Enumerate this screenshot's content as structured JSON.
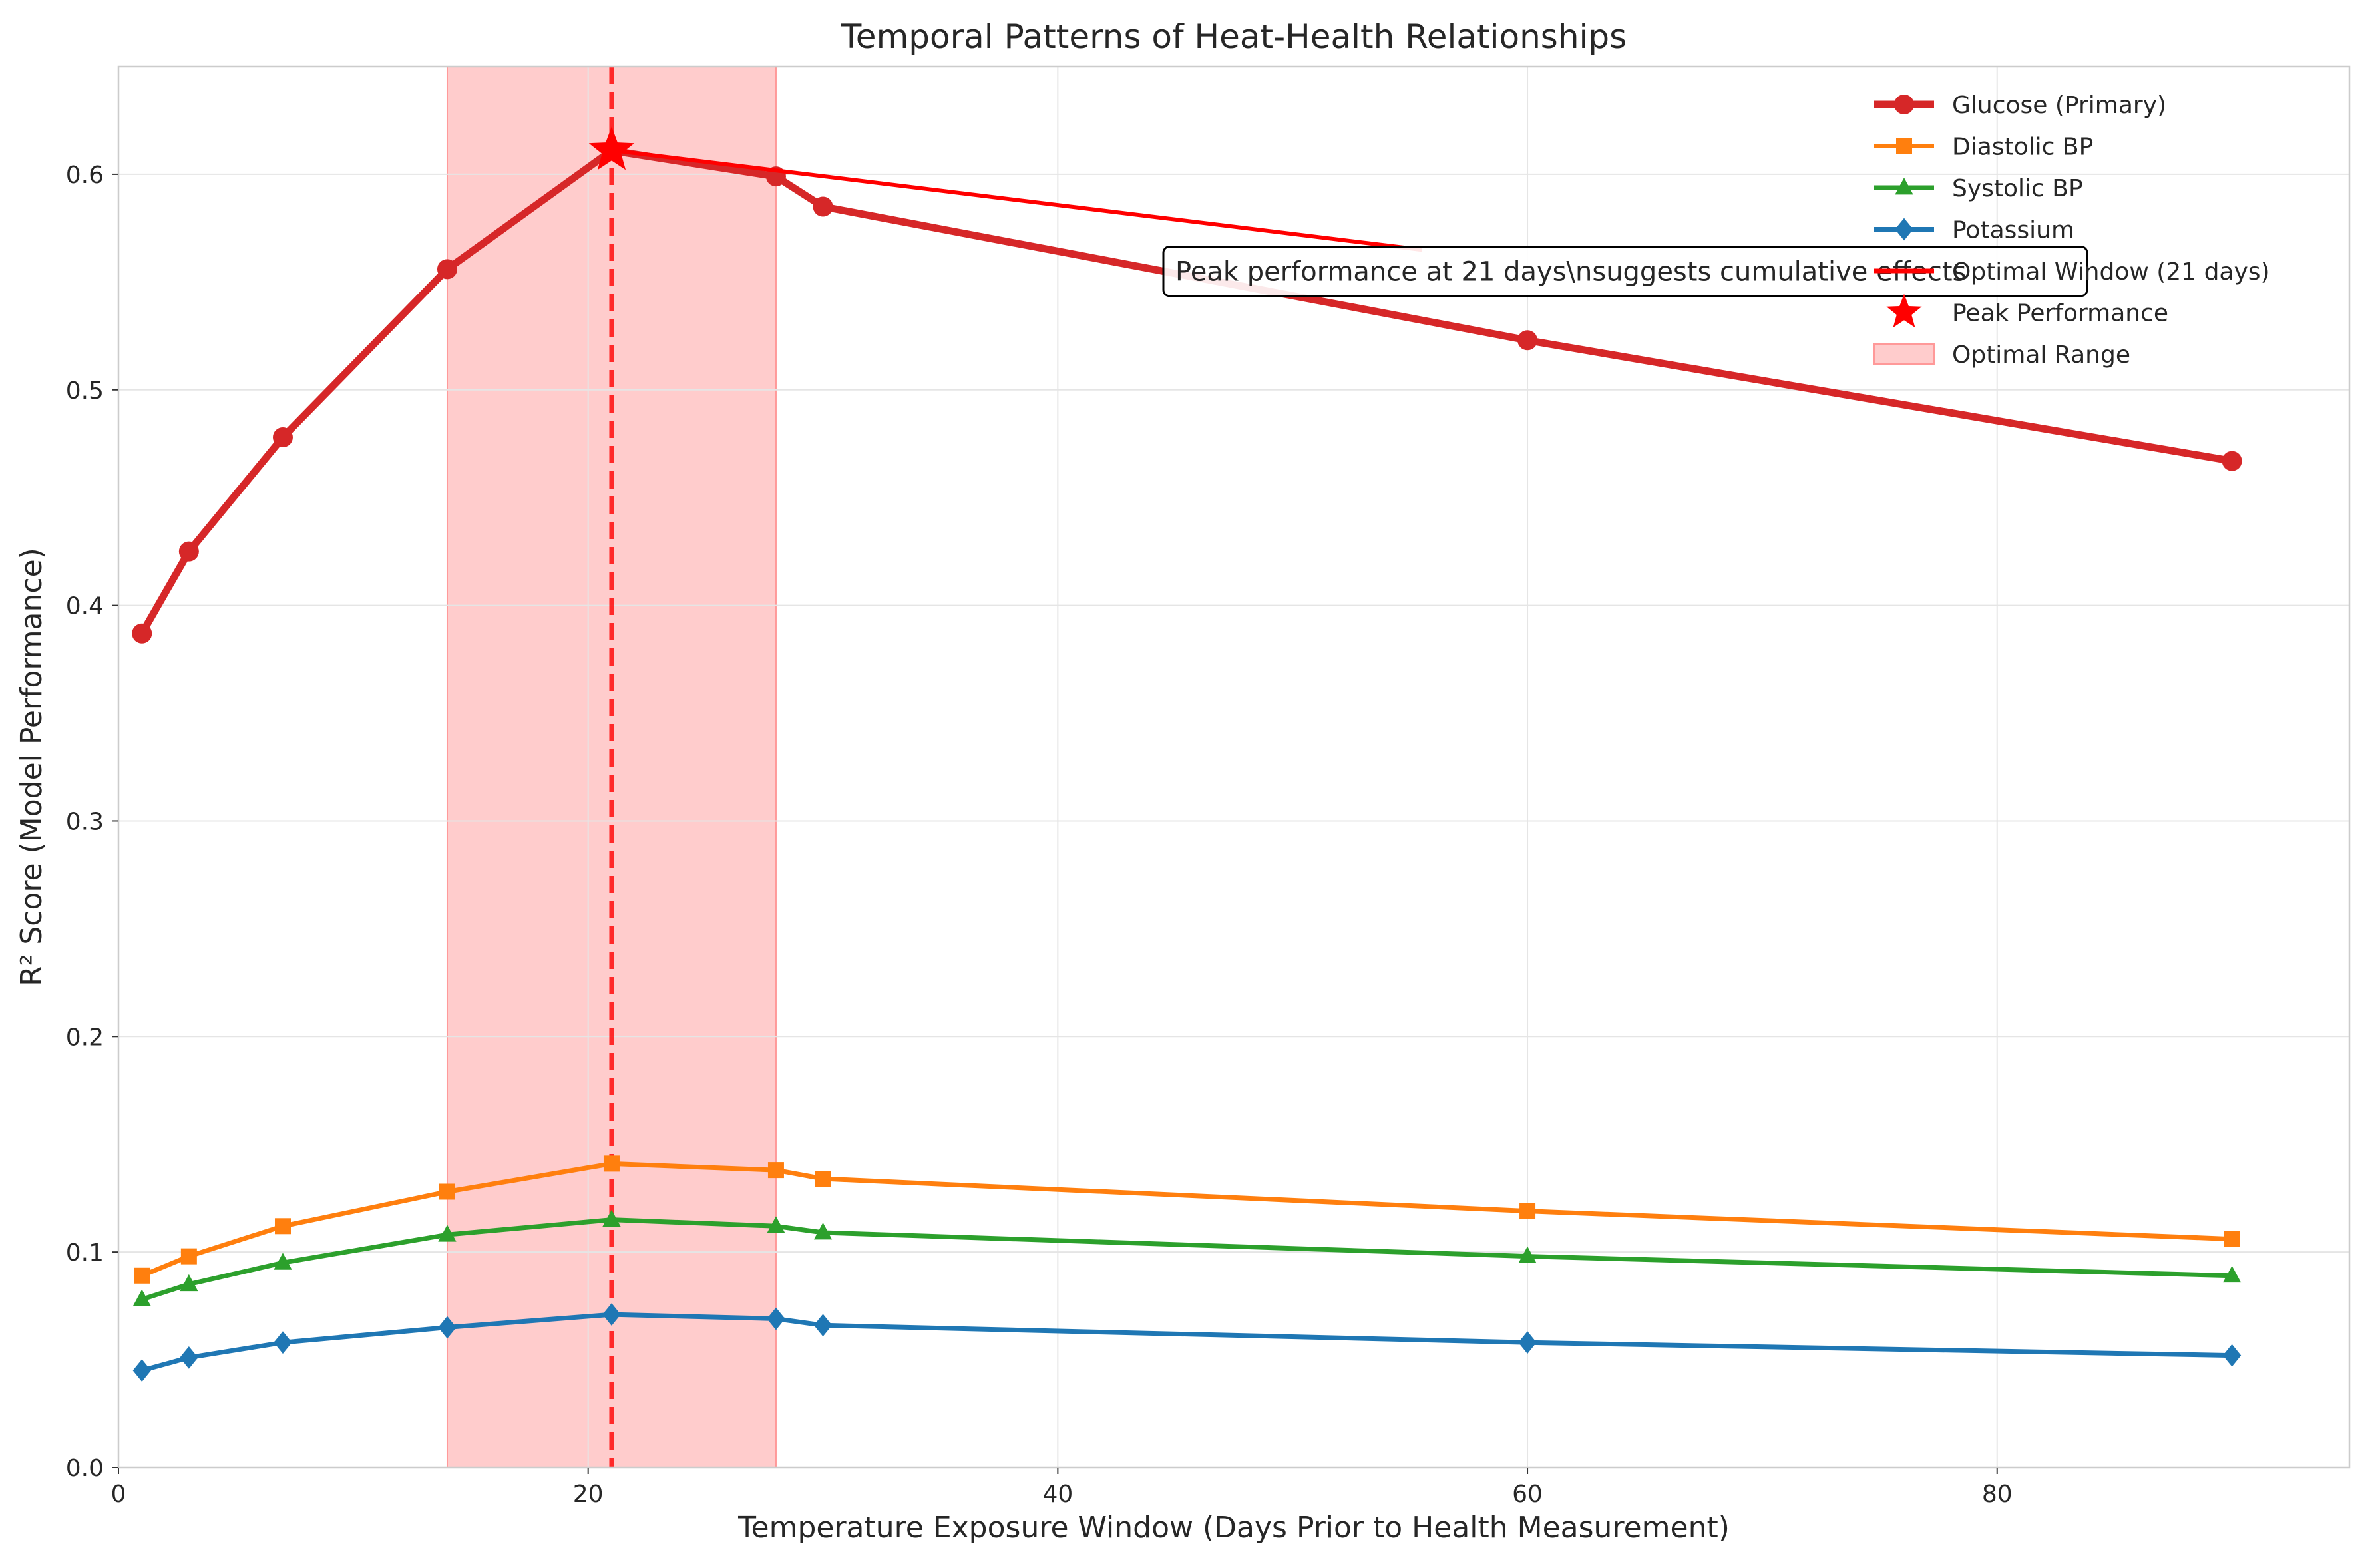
{
  "chart_data": {
    "type": "line",
    "title": "Temporal Patterns of Heat-Health Relationships",
    "xlabel": "Temperature Exposure Window (Days Prior to Health Measurement)",
    "ylabel": "R² Score (Model Performance)",
    "xlim": [
      0,
      95
    ],
    "ylim": [
      0,
      0.65
    ],
    "x_ticks": [
      0,
      20,
      40,
      60,
      80
    ],
    "y_ticks": [
      0.0,
      0.1,
      0.2,
      0.3,
      0.4,
      0.5,
      0.6
    ],
    "x_tick_labels": [
      "0",
      "20",
      "40",
      "60",
      "80"
    ],
    "y_tick_labels": [
      "0.0",
      "0.1",
      "0.2",
      "0.3",
      "0.4",
      "0.5",
      "0.6"
    ],
    "grid": true,
    "legend_position": "top-right",
    "x": [
      1,
      3,
      7,
      14,
      21,
      28,
      30,
      60,
      90
    ],
    "series": [
      {
        "name": "Glucose (Primary)",
        "color": "#d62728",
        "marker": "circle",
        "values": [
          0.387,
          0.425,
          0.478,
          0.556,
          0.611,
          0.599,
          0.585,
          0.523,
          0.467
        ]
      },
      {
        "name": "Diastolic BP",
        "color": "#ff7f0e",
        "marker": "square",
        "values": [
          0.089,
          0.098,
          0.112,
          0.128,
          0.141,
          0.138,
          0.134,
          0.119,
          0.106
        ]
      },
      {
        "name": "Systolic BP",
        "color": "#2ca02c",
        "marker": "triangle",
        "values": [
          0.078,
          0.085,
          0.095,
          0.108,
          0.115,
          0.112,
          0.109,
          0.098,
          0.089
        ]
      },
      {
        "name": "Potassium",
        "color": "#1f77b4",
        "marker": "diamond",
        "values": [
          0.045,
          0.051,
          0.058,
          0.065,
          0.071,
          0.069,
          0.066,
          0.058,
          0.052
        ]
      }
    ],
    "optimal_window": {
      "label": "Optimal Window (21 days)",
      "x": 21,
      "color": "#ff0000"
    },
    "peak": {
      "label": "Peak Performance",
      "x": 21,
      "y": 0.611,
      "color": "#ff0000"
    },
    "optimal_range": {
      "label": "Optimal Range",
      "x_start": 14,
      "x_end": 28,
      "color": "#ff9999"
    },
    "annotation": {
      "text": "Peak performance at 21 days\\nsuggests cumulative effects",
      "arrow_from": [
        55.5,
        0.565
      ],
      "arrow_to": [
        21,
        0.611
      ]
    }
  }
}
